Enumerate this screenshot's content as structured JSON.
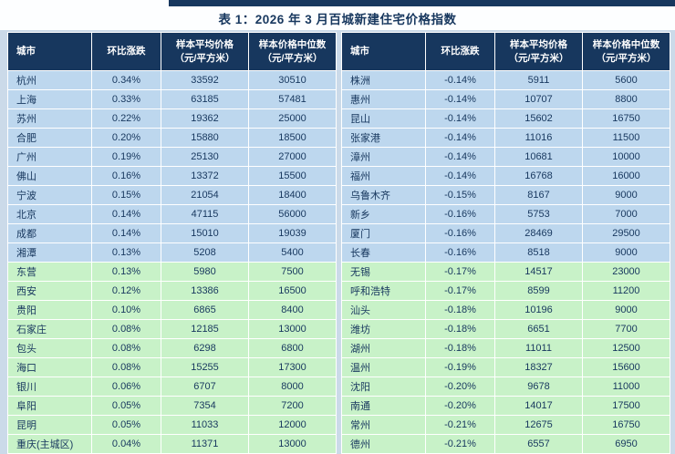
{
  "title": "表 1：2026 年 3 月百城新建住宅价格指数",
  "colors": {
    "page_bg": "#CBDAE9",
    "accent_bar": "#17375E",
    "header_bg": "#17375E",
    "header_text": "#FFFFFF",
    "row_blue": "#BDD7EE",
    "row_green": "#C8F2C8",
    "text_color": "#17375E"
  },
  "table": {
    "headers": [
      "城市",
      "环比涨跌",
      "样本平均价格\n（元/平方米）",
      "样本价格中位数\n（元/平方米）"
    ],
    "left_rows": [
      [
        "杭州",
        "0.34%",
        "33592",
        "30510",
        "blue"
      ],
      [
        "上海",
        "0.33%",
        "63185",
        "57481",
        "blue"
      ],
      [
        "苏州",
        "0.22%",
        "19362",
        "25000",
        "blue"
      ],
      [
        "合肥",
        "0.20%",
        "15880",
        "18500",
        "blue"
      ],
      [
        "广州",
        "0.19%",
        "25130",
        "27000",
        "blue"
      ],
      [
        "佛山",
        "0.16%",
        "13372",
        "15500",
        "blue"
      ],
      [
        "宁波",
        "0.15%",
        "21054",
        "18400",
        "blue"
      ],
      [
        "北京",
        "0.14%",
        "47115",
        "56000",
        "blue"
      ],
      [
        "成都",
        "0.14%",
        "15010",
        "19039",
        "blue"
      ],
      [
        "湘潭",
        "0.13%",
        "5208",
        "5400",
        "blue"
      ],
      [
        "东营",
        "0.13%",
        "5980",
        "7500",
        "green"
      ],
      [
        "西安",
        "0.12%",
        "13386",
        "16500",
        "green"
      ],
      [
        "贵阳",
        "0.10%",
        "6865",
        "8400",
        "green"
      ],
      [
        "石家庄",
        "0.08%",
        "12185",
        "13000",
        "green"
      ],
      [
        "包头",
        "0.08%",
        "6298",
        "6800",
        "green"
      ],
      [
        "海口",
        "0.08%",
        "15255",
        "17300",
        "green"
      ],
      [
        "银川",
        "0.06%",
        "6707",
        "8000",
        "green"
      ],
      [
        "阜阳",
        "0.05%",
        "7354",
        "7200",
        "green"
      ],
      [
        "昆明",
        "0.05%",
        "11033",
        "12000",
        "green"
      ],
      [
        "重庆(主城区)",
        "0.04%",
        "11371",
        "13000",
        "green"
      ]
    ],
    "right_rows": [
      [
        "株洲",
        "-0.14%",
        "5911",
        "5600",
        "blue"
      ],
      [
        "惠州",
        "-0.14%",
        "10707",
        "8800",
        "blue"
      ],
      [
        "昆山",
        "-0.14%",
        "15602",
        "16750",
        "blue"
      ],
      [
        "张家港",
        "-0.14%",
        "11016",
        "11500",
        "blue"
      ],
      [
        "漳州",
        "-0.14%",
        "10681",
        "10000",
        "blue"
      ],
      [
        "福州",
        "-0.14%",
        "16768",
        "16000",
        "blue"
      ],
      [
        "乌鲁木齐",
        "-0.15%",
        "8167",
        "9000",
        "blue"
      ],
      [
        "新乡",
        "-0.16%",
        "5753",
        "7000",
        "blue"
      ],
      [
        "厦门",
        "-0.16%",
        "28469",
        "29500",
        "blue"
      ],
      [
        "长春",
        "-0.16%",
        "8518",
        "9000",
        "blue"
      ],
      [
        "无锡",
        "-0.17%",
        "14517",
        "23000",
        "green"
      ],
      [
        "呼和浩特",
        "-0.17%",
        "8599",
        "11200",
        "green"
      ],
      [
        "汕头",
        "-0.18%",
        "10196",
        "9000",
        "green"
      ],
      [
        "潍坊",
        "-0.18%",
        "6651",
        "7700",
        "green"
      ],
      [
        "湖州",
        "-0.18%",
        "11011",
        "12500",
        "green"
      ],
      [
        "温州",
        "-0.19%",
        "18327",
        "15600",
        "green"
      ],
      [
        "沈阳",
        "-0.20%",
        "9678",
        "11000",
        "green"
      ],
      [
        "南通",
        "-0.20%",
        "14017",
        "17500",
        "green"
      ],
      [
        "常州",
        "-0.21%",
        "12675",
        "16750",
        "green"
      ],
      [
        "德州",
        "-0.21%",
        "6557",
        "6950",
        "green"
      ]
    ]
  }
}
